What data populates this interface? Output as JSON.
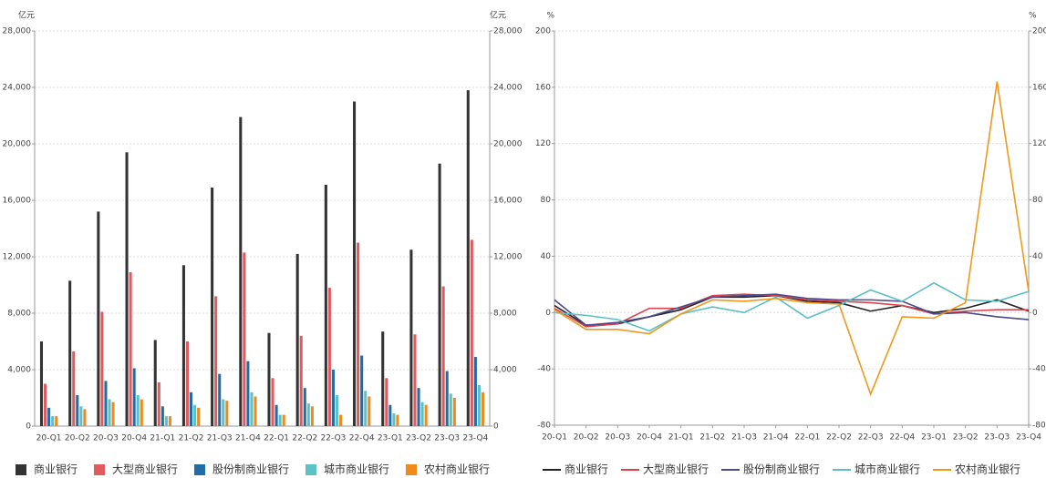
{
  "chart_data": [
    {
      "type": "bar",
      "ylabel": "亿元",
      "categories": [
        "20-Q1",
        "20-Q2",
        "20-Q3",
        "20-Q4",
        "21-Q1",
        "21-Q2",
        "21-Q3",
        "21-Q4",
        "22-Q1",
        "22-Q2",
        "22-Q3",
        "22-Q4",
        "23-Q1",
        "23-Q2",
        "23-Q3",
        "23-Q4"
      ],
      "ylim": [
        0,
        28000
      ],
      "yticks": [
        0,
        {
          "value": 4000,
          "label": "4,000"
        },
        {
          "value": 8000,
          "label": "8,000"
        },
        {
          "value": 12000,
          "label": "12,000"
        },
        {
          "value": 16000,
          "label": "16,000"
        },
        {
          "value": 20000,
          "label": "20,000"
        },
        {
          "value": 24000,
          "label": "24,000"
        },
        {
          "value": 28000,
          "label": "28,000"
        }
      ],
      "grid": true,
      "series": [
        {
          "name": "商业银行",
          "color": "#333333",
          "values": [
            6000,
            10300,
            15200,
            19400,
            6100,
            11400,
            16900,
            21900,
            6600,
            12200,
            17100,
            23000,
            6700,
            12500,
            18600,
            23800
          ]
        },
        {
          "name": "大型商业银行",
          "color": "#e05a5e",
          "values": [
            3000,
            5300,
            8100,
            10900,
            3100,
            6000,
            9200,
            12300,
            3400,
            6400,
            9800,
            13000,
            3400,
            6500,
            9900,
            13200
          ]
        },
        {
          "name": "股份制商业银行",
          "color": "#1f6ea6",
          "values": [
            1300,
            2200,
            3200,
            4100,
            1400,
            2400,
            3700,
            4600,
            1500,
            2700,
            4000,
            5000,
            1500,
            2700,
            3900,
            4900
          ]
        },
        {
          "name": "城市商业银行",
          "color": "#5bc2c6",
          "values": [
            700,
            1400,
            1900,
            2200,
            700,
            1500,
            1900,
            2400,
            800,
            1600,
            2200,
            2500,
            900,
            1700,
            2300,
            2900
          ]
        },
        {
          "name": "农村商业银行",
          "color": "#f08a1c",
          "values": [
            700,
            1200,
            1700,
            1900,
            700,
            1300,
            1800,
            2100,
            800,
            1400,
            800,
            2100,
            800,
            1500,
            2000,
            2400
          ]
        }
      ]
    },
    {
      "type": "line",
      "ylabel": "%",
      "categories": [
        "20-Q1",
        "20-Q2",
        "20-Q3",
        "20-Q4",
        "21-Q1",
        "21-Q2",
        "21-Q3",
        "21-Q4",
        "22-Q1",
        "22-Q2",
        "22-Q3",
        "22-Q4",
        "23-Q1",
        "23-Q2",
        "23-Q3",
        "23-Q4"
      ],
      "ylim": [
        -80,
        200
      ],
      "yticks": [
        -80,
        -40,
        0,
        40,
        80,
        120,
        160,
        200
      ],
      "grid": true,
      "series": [
        {
          "name": "商业银行",
          "color": "#222222",
          "values": [
            5,
            -9,
            -8,
            -3,
            2,
            11,
            11,
            12,
            8,
            7,
            1,
            5,
            0,
            3,
            9,
            1
          ]
        },
        {
          "name": "大型商业银行",
          "color": "#d9434f",
          "values": [
            3,
            -10,
            -8,
            3,
            3,
            12,
            13,
            12,
            9,
            8,
            7,
            5,
            -1,
            1,
            2,
            2
          ]
        },
        {
          "name": "股份制商业银行",
          "color": "#4a4a8c",
          "values": [
            9,
            -9,
            -7,
            -3,
            4,
            11,
            12,
            13,
            10,
            9,
            9,
            8,
            -1,
            0,
            -3,
            -5
          ]
        },
        {
          "name": "城市商业银行",
          "color": "#5bbfc4",
          "values": [
            0,
            -2,
            -5,
            -13,
            -1,
            4,
            0,
            11,
            -4,
            5,
            16,
            8,
            21,
            9,
            8,
            15
          ]
        },
        {
          "name": "农村商业银行",
          "color": "#f0981c",
          "values": [
            2,
            -12,
            -12,
            -15,
            -1,
            9,
            8,
            10,
            7,
            6,
            -58,
            -3,
            -4,
            7,
            164,
            15
          ]
        }
      ]
    }
  ]
}
